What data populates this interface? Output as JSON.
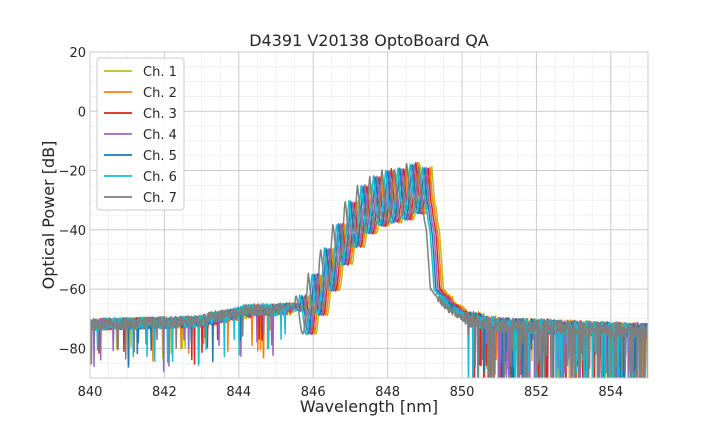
{
  "chart_data": {
    "type": "line",
    "title": "D4391 V20138 OptoBoard QA",
    "xlabel": "Wavelength [nm]",
    "ylabel": "Optical Power [dB]",
    "xlim": [
      840,
      855
    ],
    "ylim": [
      -90,
      20
    ],
    "xticks": [
      840,
      842,
      844,
      846,
      848,
      850,
      852,
      854
    ],
    "yticks": [
      20,
      0,
      -20,
      -40,
      -60,
      -80
    ],
    "xtick_labels": [
      "840",
      "842",
      "844",
      "846",
      "848",
      "850",
      "852",
      "854"
    ],
    "ytick_labels": [
      "20",
      "0",
      "−20",
      "−40",
      "−60",
      "−80"
    ],
    "minor_grid_step_x": 0.5,
    "minor_grid_step_y": 5,
    "grid": true,
    "legend_position": "top-left",
    "series": [
      {
        "name": "Ch. 1",
        "color": "#bcbd22",
        "shift": 0.1,
        "seed": 11
      },
      {
        "name": "Ch. 2",
        "color": "#ff7f0e",
        "shift": 0.05,
        "seed": 23
      },
      {
        "name": "Ch. 3",
        "color": "#d62728",
        "shift": 0.0,
        "seed": 37
      },
      {
        "name": "Ch. 4",
        "color": "#9467bd",
        "shift": -0.05,
        "seed": 41
      },
      {
        "name": "Ch. 5",
        "color": "#1f77b4",
        "shift": -0.1,
        "seed": 53
      },
      {
        "name": "Ch. 6",
        "color": "#17becf",
        "shift": -0.15,
        "seed": 67
      },
      {
        "name": "Ch. 7",
        "color": "#7f7f7f",
        "shift": -0.25,
        "seed": 79
      }
    ],
    "envelope": {
      "x": [
        840,
        843,
        844.5,
        845.2,
        845.5,
        845.7,
        846.0,
        846.3,
        846.7,
        847.0,
        847.5,
        848.0,
        848.5,
        849.0,
        849.2,
        849.4,
        849.8,
        850.3,
        851.0,
        855
      ],
      "y": [
        -72,
        -71,
        -67,
        -67,
        -66,
        -64,
        -58,
        -50,
        -40,
        -32,
        -24,
        -20,
        -19,
        -16,
        -22,
        -60,
        -66,
        -70,
        -72,
        -74
      ]
    },
    "fringe_period_nm": 0.33,
    "fringe_phase_nm": 846.12,
    "fringe_start_nm": 845.6,
    "fringe_end_nm": 849.3,
    "fringe_depth_db": 18
  }
}
